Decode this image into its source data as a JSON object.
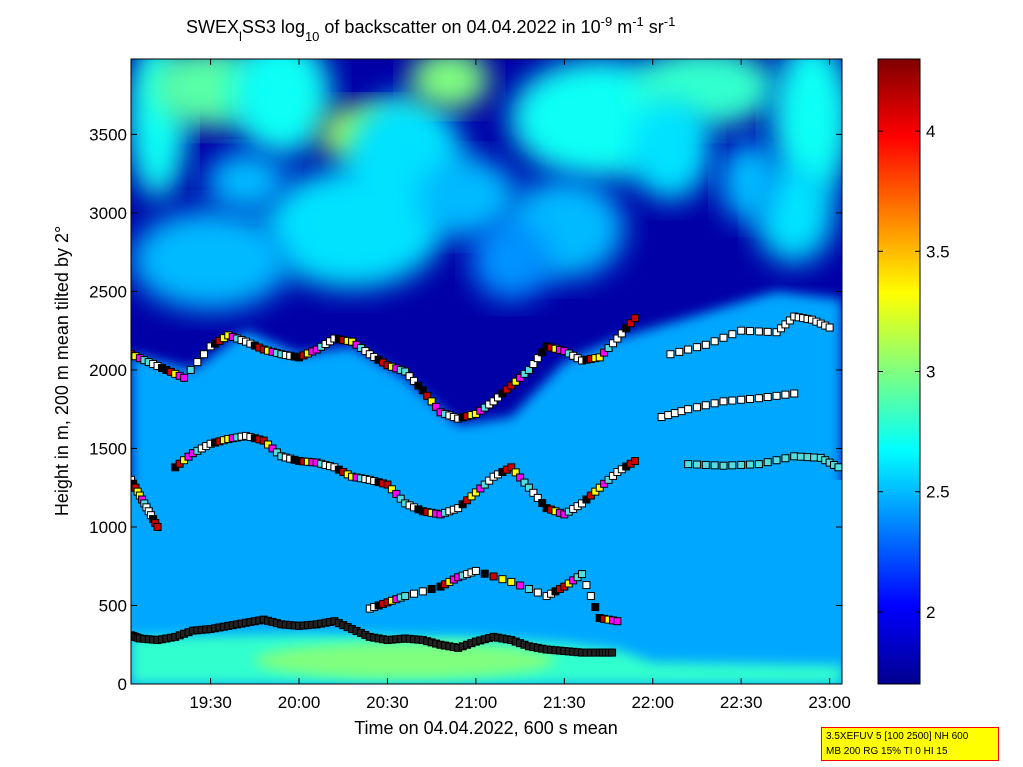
{
  "title": {
    "prefix": "SWEX",
    "sub_l": "l",
    "mid": "SS3 log",
    "sub_10": "10",
    "mid2": " of backscatter on 04.04.2022 in 10",
    "sup_m9": "-9",
    "mid3": " m",
    "sup_m1a": "-1",
    "mid4": " sr",
    "sup_m1b": "-1"
  },
  "colors": {
    "cloud_colormap": "jet",
    "low_signal": "#00008f",
    "high_signal": "#800000",
    "marker_edge": "#000000"
  },
  "info_box": {
    "line1": "3.5XEFUV 5 [100 2500] NH 600",
    "line2": "MB 200 RG 15% TI 0 HI 15"
  },
  "chart_data": {
    "type": "heatmap",
    "title": "SWEX_lSS3 log10 of backscatter on 04.04.2022 in 10^-9 m^-1 sr^-1",
    "xlabel": "Time on 04.04.2022, 600 s mean",
    "ylabel": "Height in m, 200 m mean tilted by 2°",
    "x_ticks": [
      "19:30",
      "20:00",
      "20:30",
      "21:00",
      "21:30",
      "22:00",
      "22:30",
      "23:00"
    ],
    "x_tick_hours": [
      19.5,
      20.0,
      20.5,
      21.0,
      21.5,
      22.0,
      22.5,
      23.0
    ],
    "xlim_hours": [
      19.05,
      23.07
    ],
    "y_ticks": [
      "0",
      "500",
      "1000",
      "1500",
      "2000",
      "2500",
      "3000",
      "3500"
    ],
    "y_tick_values": [
      0,
      500,
      1000,
      1500,
      2000,
      2500,
      3000,
      3500
    ],
    "ylim": [
      0,
      3980
    ],
    "colorbar": {
      "colormap": "jet",
      "clim": [
        1.7,
        4.3
      ],
      "ticks": [
        "2",
        "2.5",
        "3",
        "3.5",
        "4"
      ],
      "tick_values": [
        2.0,
        2.5,
        3.0,
        3.5,
        4.0
      ]
    },
    "field_summary": {
      "surface_layer_top_m": 300,
      "surface_layer_value": 2.8,
      "boundary_layer_value": 2.45,
      "upper_clear_value": 1.8,
      "upper_patch_value": 2.8
    },
    "layer_marker_series": [
      {
        "points": [
          [
            19.05,
            310
          ],
          [
            19.1,
            290
          ],
          [
            19.2,
            280
          ],
          [
            19.3,
            300
          ],
          [
            19.4,
            340
          ],
          [
            19.5,
            350
          ],
          [
            19.6,
            370
          ],
          [
            19.7,
            390
          ],
          [
            19.8,
            410
          ],
          [
            19.9,
            380
          ],
          [
            20.0,
            370
          ],
          [
            20.1,
            380
          ],
          [
            20.2,
            400
          ],
          [
            20.3,
            350
          ],
          [
            20.4,
            300
          ],
          [
            20.5,
            280
          ],
          [
            20.6,
            290
          ],
          [
            20.7,
            280
          ],
          [
            20.8,
            250
          ],
          [
            20.9,
            230
          ],
          [
            21.0,
            270
          ],
          [
            21.1,
            300
          ],
          [
            21.2,
            280
          ],
          [
            21.3,
            240
          ],
          [
            21.4,
            220
          ],
          [
            21.5,
            210
          ],
          [
            21.6,
            200
          ],
          [
            21.7,
            200
          ],
          [
            21.77,
            200
          ]
        ]
      },
      {
        "points": [
          [
            19.05,
            1300
          ],
          [
            19.1,
            1200
          ],
          [
            19.15,
            1100
          ],
          [
            19.2,
            1000
          ]
        ]
      },
      {
        "points": [
          [
            19.3,
            1380
          ],
          [
            19.4,
            1470
          ],
          [
            19.5,
            1530
          ],
          [
            19.6,
            1560
          ],
          [
            19.7,
            1580
          ],
          [
            19.8,
            1550
          ],
          [
            19.9,
            1450
          ],
          [
            20.0,
            1420
          ],
          [
            20.1,
            1410
          ],
          [
            20.2,
            1380
          ],
          [
            20.3,
            1320
          ],
          [
            20.4,
            1300
          ],
          [
            20.5,
            1270
          ],
          [
            20.6,
            1150
          ],
          [
            20.7,
            1100
          ],
          [
            20.8,
            1080
          ],
          [
            20.9,
            1120
          ],
          [
            21.0,
            1220
          ],
          [
            21.1,
            1320
          ],
          [
            21.2,
            1380
          ],
          [
            21.3,
            1250
          ],
          [
            21.4,
            1120
          ],
          [
            21.5,
            1080
          ],
          [
            21.6,
            1150
          ],
          [
            21.7,
            1250
          ],
          [
            21.8,
            1350
          ],
          [
            21.9,
            1420
          ]
        ]
      },
      {
        "points": [
          [
            19.05,
            2100
          ],
          [
            19.15,
            2050
          ],
          [
            19.25,
            2000
          ],
          [
            19.35,
            1950
          ],
          [
            19.5,
            2150
          ],
          [
            19.6,
            2220
          ],
          [
            19.7,
            2180
          ],
          [
            19.8,
            2130
          ],
          [
            19.9,
            2100
          ],
          [
            20.0,
            2080
          ],
          [
            20.1,
            2130
          ],
          [
            20.2,
            2200
          ],
          [
            20.3,
            2180
          ],
          [
            20.4,
            2100
          ],
          [
            20.5,
            2030
          ],
          [
            20.6,
            1990
          ],
          [
            20.7,
            1870
          ],
          [
            20.8,
            1730
          ],
          [
            20.9,
            1690
          ],
          [
            21.0,
            1720
          ],
          [
            21.1,
            1800
          ],
          [
            21.2,
            1900
          ],
          [
            21.3,
            2000
          ],
          [
            21.4,
            2150
          ],
          [
            21.5,
            2120
          ],
          [
            21.6,
            2060
          ],
          [
            21.7,
            2080
          ],
          [
            21.8,
            2200
          ],
          [
            21.9,
            2330
          ]
        ]
      },
      {
        "points": [
          [
            22.05,
            1700
          ],
          [
            22.2,
            1750
          ],
          [
            22.4,
            1800
          ],
          [
            22.6,
            1820
          ],
          [
            22.8,
            1850
          ]
        ]
      },
      {
        "points": [
          [
            22.2,
            1400
          ],
          [
            22.4,
            1390
          ],
          [
            22.6,
            1400
          ],
          [
            22.8,
            1450
          ],
          [
            22.95,
            1440
          ],
          [
            23.05,
            1380
          ]
        ]
      },
      {
        "points": [
          [
            22.1,
            2100
          ],
          [
            22.3,
            2160
          ],
          [
            22.5,
            2250
          ],
          [
            22.7,
            2240
          ],
          [
            22.8,
            2340
          ],
          [
            22.9,
            2320
          ],
          [
            23.0,
            2270
          ]
        ]
      },
      {
        "points": [
          [
            20.4,
            480
          ],
          [
            20.5,
            520
          ],
          [
            20.6,
            560
          ],
          [
            20.8,
            620
          ],
          [
            20.9,
            680
          ],
          [
            21.0,
            720
          ],
          [
            21.2,
            650
          ],
          [
            21.4,
            560
          ],
          [
            21.5,
            620
          ],
          [
            21.6,
            700
          ],
          [
            21.7,
            420
          ],
          [
            21.8,
            400
          ]
        ]
      }
    ]
  }
}
